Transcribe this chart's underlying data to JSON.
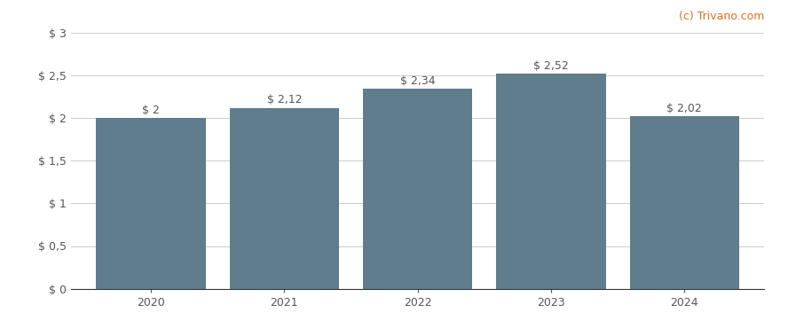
{
  "categories": [
    "2020",
    "2021",
    "2022",
    "2023",
    "2024"
  ],
  "values": [
    2.0,
    2.12,
    2.34,
    2.52,
    2.02
  ],
  "bar_labels": [
    "$ 2",
    "$ 2,12",
    "$ 2,34",
    "$ 2,52",
    "$ 2,02"
  ],
  "bar_color": "#5f7d8c",
  "background_color": "#ffffff",
  "grid_color": "#cccccc",
  "ylim": [
    0,
    3.0
  ],
  "yticks": [
    0,
    0.5,
    1.0,
    1.5,
    2.0,
    2.5,
    3.0
  ],
  "ytick_labels": [
    "$ 0",
    "$ 0,5",
    "$ 1",
    "$ 1,5",
    "$ 2",
    "$ 2,5",
    "$ 3"
  ],
  "watermark": "(c) Trivano.com",
  "watermark_color": "#e07020",
  "label_fontsize": 9,
  "tick_fontsize": 9,
  "watermark_fontsize": 9,
  "bar_width": 0.82
}
